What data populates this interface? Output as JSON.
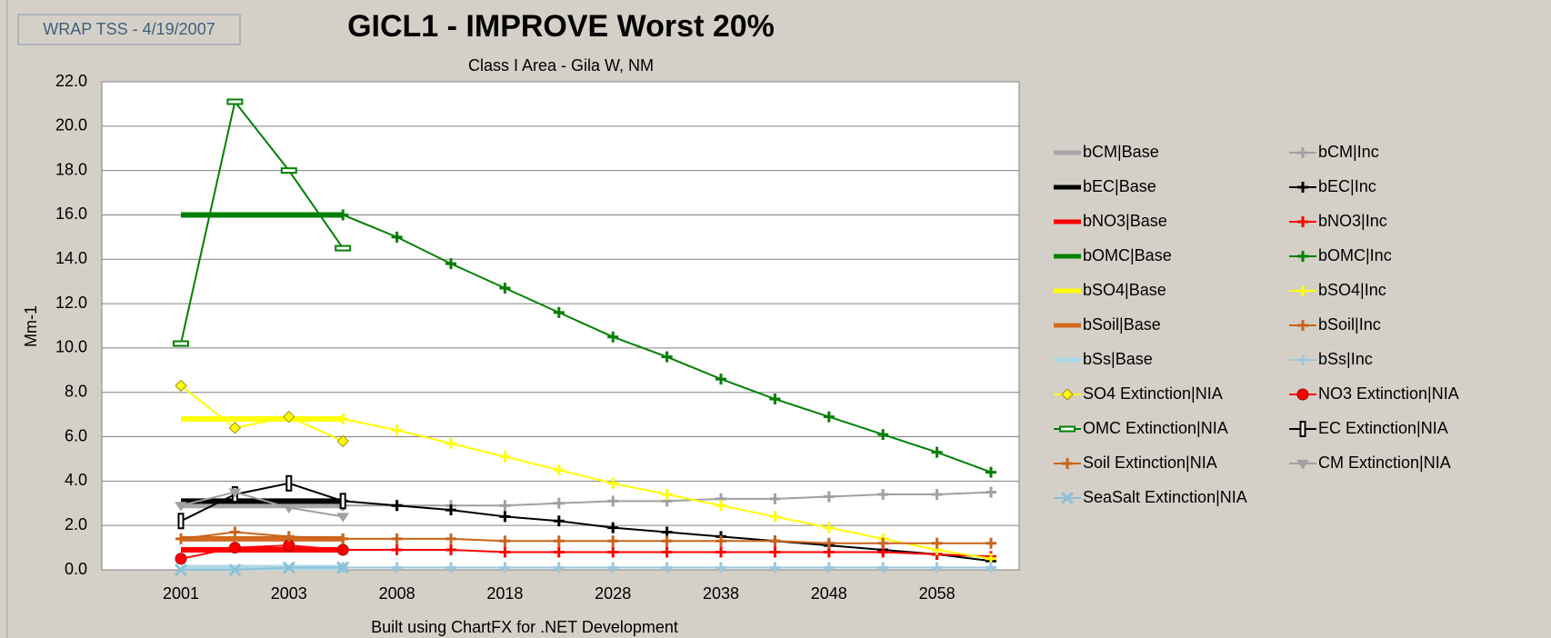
{
  "stamp": "WRAP TSS - 4/19/2007",
  "chart_data": {
    "type": "line",
    "title": "GICL1 - IMPROVE Worst 20%",
    "subtitle": "Class I Area - Gila W, NM",
    "y_label": "Mm-1",
    "footer": "Built using ChartFX for .NET Development",
    "categories": [
      "2001",
      null,
      "2003",
      null,
      "2008",
      null,
      "2018",
      null,
      "2028",
      null,
      "2038",
      null,
      "2048",
      null,
      "2058",
      null
    ],
    "ylim": [
      0,
      22
    ],
    "yticks": [
      {
        "value": 0,
        "label": "0.0"
      },
      {
        "value": 2,
        "label": "2.0"
      },
      {
        "value": 4,
        "label": "4.0"
      },
      {
        "value": 6,
        "label": "6.0"
      },
      {
        "value": 8,
        "label": "8.0"
      },
      {
        "value": 10,
        "label": "10.0"
      },
      {
        "value": 12,
        "label": "12.0"
      },
      {
        "value": 14,
        "label": "14.0"
      },
      {
        "value": 16,
        "label": "16.0"
      },
      {
        "value": 18,
        "label": "18.0"
      },
      {
        "value": 20,
        "label": "20.0"
      },
      {
        "value": 22,
        "label": "22.0"
      }
    ],
    "grid": true,
    "legend": "right",
    "series": [
      {
        "name": "bCM|Base",
        "color": "#a8a8a8",
        "marker": "none",
        "values": [
          2.9,
          2.9,
          2.9,
          2.9,
          null,
          null,
          null,
          null,
          null,
          null,
          null,
          null,
          null,
          null,
          null,
          null
        ]
      },
      {
        "name": "bCM|Inc",
        "color": "#a0a0a0",
        "marker": "plus",
        "values": [
          null,
          null,
          null,
          2.9,
          2.9,
          2.9,
          2.9,
          3.0,
          3.1,
          3.1,
          3.2,
          3.2,
          3.3,
          3.4,
          3.4,
          3.5
        ]
      },
      {
        "name": "bEC|Base",
        "color": "#000000",
        "marker": "none",
        "values": [
          3.1,
          3.1,
          3.1,
          3.1,
          null,
          null,
          null,
          null,
          null,
          null,
          null,
          null,
          null,
          null,
          null,
          null
        ]
      },
      {
        "name": "bEC|Inc",
        "color": "#000000",
        "marker": "plus",
        "values": [
          null,
          null,
          null,
          3.1,
          2.9,
          2.7,
          2.4,
          2.2,
          1.9,
          1.7,
          1.5,
          1.3,
          1.1,
          0.9,
          0.7,
          0.4
        ]
      },
      {
        "name": "bNO3|Base",
        "color": "#ff0000",
        "marker": "none",
        "values": [
          0.9,
          0.9,
          0.9,
          0.9,
          null,
          null,
          null,
          null,
          null,
          null,
          null,
          null,
          null,
          null,
          null,
          null
        ]
      },
      {
        "name": "bNO3|Inc",
        "color": "#ff0000",
        "marker": "plus",
        "values": [
          null,
          null,
          null,
          0.9,
          0.9,
          0.9,
          0.8,
          0.8,
          0.8,
          0.8,
          0.8,
          0.8,
          0.8,
          0.8,
          0.7,
          0.6
        ]
      },
      {
        "name": "bOMC|Base",
        "color": "#008000",
        "marker": "none",
        "values": [
          16.0,
          16.0,
          16.0,
          16.0,
          null,
          null,
          null,
          null,
          null,
          null,
          null,
          null,
          null,
          null,
          null,
          null
        ]
      },
      {
        "name": "bOMC|Inc",
        "color": "#008000",
        "marker": "plus",
        "values": [
          null,
          null,
          null,
          16.0,
          15.0,
          13.8,
          12.7,
          11.6,
          10.5,
          9.6,
          8.6,
          7.7,
          6.9,
          6.1,
          5.3,
          4.4
        ]
      },
      {
        "name": "bSO4|Base",
        "color": "#ffff00",
        "marker": "none",
        "values": [
          6.8,
          6.8,
          6.8,
          6.8,
          null,
          null,
          null,
          null,
          null,
          null,
          null,
          null,
          null,
          null,
          null,
          null
        ]
      },
      {
        "name": "bSO4|Inc",
        "color": "#ffff00",
        "marker": "plus",
        "values": [
          null,
          null,
          null,
          6.8,
          6.3,
          5.7,
          5.1,
          4.5,
          3.9,
          3.4,
          2.9,
          2.4,
          1.9,
          1.4,
          0.9,
          0.5
        ]
      },
      {
        "name": "bSoil|Base",
        "color": "#d2691e",
        "marker": "none",
        "values": [
          1.4,
          1.4,
          1.4,
          1.4,
          null,
          null,
          null,
          null,
          null,
          null,
          null,
          null,
          null,
          null,
          null,
          null
        ]
      },
      {
        "name": "bSoil|Inc",
        "color": "#c8641e",
        "marker": "plus",
        "values": [
          null,
          null,
          null,
          1.4,
          1.4,
          1.4,
          1.3,
          1.3,
          1.3,
          1.3,
          1.3,
          1.3,
          1.2,
          1.2,
          1.2,
          1.2
        ]
      },
      {
        "name": "bSs|Base",
        "color": "#add8e6",
        "marker": "none",
        "values": [
          0.1,
          0.1,
          0.1,
          0.1,
          null,
          null,
          null,
          null,
          null,
          null,
          null,
          null,
          null,
          null,
          null,
          null
        ]
      },
      {
        "name": "bSs|Inc",
        "color": "#9cc8dc",
        "marker": "plus",
        "values": [
          null,
          null,
          null,
          0.1,
          0.1,
          0.1,
          0.1,
          0.1,
          0.1,
          0.1,
          0.1,
          0.1,
          0.1,
          0.1,
          0.1,
          0.1
        ]
      },
      {
        "name": "SO4 Extinction|NIA",
        "color": "#ffff00",
        "marker": "diamond",
        "values": [
          8.3,
          6.4,
          6.9,
          5.8,
          null,
          null,
          null,
          null,
          null,
          null,
          null,
          null,
          null,
          null,
          null,
          null
        ]
      },
      {
        "name": "NO3 Extinction|NIA",
        "color": "#ff0000",
        "marker": "circle",
        "values": [
          0.5,
          1.0,
          1.1,
          0.9,
          null,
          null,
          null,
          null,
          null,
          null,
          null,
          null,
          null,
          null,
          null,
          null
        ]
      },
      {
        "name": "OMC Extinction|NIA",
        "color": "#008000",
        "marker": "dash",
        "values": [
          10.2,
          21.1,
          18.0,
          14.5,
          null,
          null,
          null,
          null,
          null,
          null,
          null,
          null,
          null,
          null,
          null,
          null
        ]
      },
      {
        "name": "EC Extinction|NIA",
        "color": "#000000",
        "marker": "bar",
        "values": [
          2.2,
          3.4,
          3.9,
          3.1,
          null,
          null,
          null,
          null,
          null,
          null,
          null,
          null,
          null,
          null,
          null,
          null
        ]
      },
      {
        "name": "Soil Extinction|NIA",
        "color": "#c8641e",
        "marker": "plus",
        "values": [
          1.4,
          1.7,
          1.5,
          1.4,
          null,
          null,
          null,
          null,
          null,
          null,
          null,
          null,
          null,
          null,
          null,
          null
        ]
      },
      {
        "name": "CM Extinction|NIA",
        "color": "#a0a0a0",
        "marker": "triangle",
        "values": [
          2.9,
          3.5,
          2.8,
          2.4,
          null,
          null,
          null,
          null,
          null,
          null,
          null,
          null,
          null,
          null,
          null,
          null
        ]
      },
      {
        "name": "SeaSalt Extinction|NIA",
        "color": "#8cc0d8",
        "marker": "x",
        "values": [
          0.0,
          0.0,
          0.1,
          0.1,
          null,
          null,
          null,
          null,
          null,
          null,
          null,
          null,
          null,
          null,
          null,
          null
        ]
      }
    ]
  }
}
